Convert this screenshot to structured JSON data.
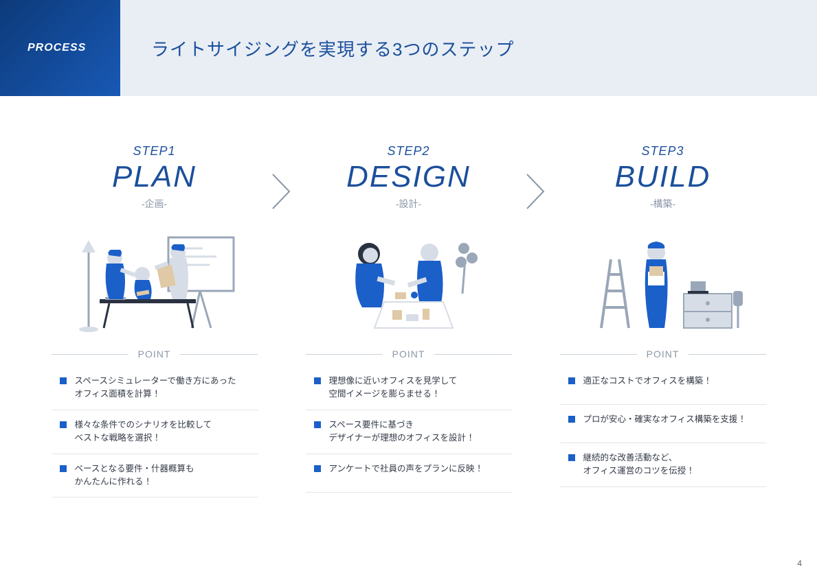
{
  "colors": {
    "brand_blue": "#1b4f9c",
    "accent_blue": "#1b5fc9",
    "header_badge_grad_start": "#0d3a7a",
    "header_badge_grad_end": "#1859b5",
    "header_bg": "#e9eef5",
    "muted_text": "#8b97a8",
    "divider": "#c9d0da",
    "point_divider": "#e0e4ea",
    "body_text": "#333a47",
    "page_bg": "#ffffff"
  },
  "typography": {
    "title_fontsize_pt": 20,
    "step_title_fontsize_pt": 33,
    "step_num_fontsize_pt": 14,
    "point_fontsize_pt": 9.5
  },
  "header": {
    "badge": "PROCESS",
    "title": "ライトサイジングを実現する3つのステップ"
  },
  "steps": [
    {
      "num": "STEP1",
      "title": "PLAN",
      "sub": "-企画-"
    },
    {
      "num": "STEP2",
      "title": "DESIGN",
      "sub": "-設計-"
    },
    {
      "num": "STEP3",
      "title": "BUILD",
      "sub": "-構築-"
    }
  ],
  "point_label": "POINT",
  "points": [
    [
      "スペースシミュレーターで働き方にあった\nオフィス面積を計算 ！",
      "様々な条件でのシナリオを比較して\nベストな戦略を選択 ！",
      "ベースとなる要件・什器概算も\nかんたんに作れる ！"
    ],
    [
      "理想像に近いオフィスを見学して\n空間イメージを膨らませる ！",
      "スペース要件に基づき\nデザイナーが理想のオフィスを設計 ！",
      "アンケートで社員の声をプランに反映 ！"
    ],
    [
      "適正なコストでオフィスを構築 ！",
      "プロが安心・確実なオフィス構築を支援 ！",
      "継続的な改善活動など、\nオフィス運営のコツを伝授 ！"
    ]
  ],
  "page_number": "4",
  "illustrations": {
    "type": "infographic",
    "palette": {
      "blue": "#1b5fc9",
      "light": "#d7dde6",
      "mid": "#9aa7b8",
      "dark": "#2a3242",
      "tan": "#e0c9a6"
    }
  }
}
